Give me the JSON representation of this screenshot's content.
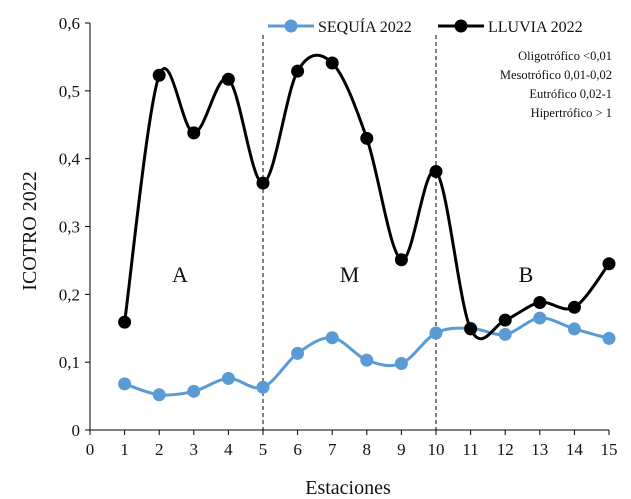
{
  "chart_data": {
    "type": "line",
    "xlabel": "Estaciones",
    "ylabel": "ICOTRO 2022",
    "xlim": [
      0,
      15
    ],
    "ylim": [
      0,
      0.6
    ],
    "x_ticks": [
      "0",
      "1",
      "2",
      "3",
      "4",
      "5",
      "6",
      "7",
      "8",
      "9",
      "10",
      "11",
      "12",
      "13",
      "14",
      "15"
    ],
    "y_ticks": [
      "0",
      "0,1",
      "0,2",
      "0,3",
      "0,4",
      "0,5",
      "0,6"
    ],
    "grid": false,
    "legend_position": "top-right",
    "series": [
      {
        "name": "SEQUÍA 2022",
        "color": "#5b9bd5",
        "x": [
          1,
          2,
          3,
          4,
          5,
          6,
          7,
          8,
          9,
          10,
          11,
          12,
          13,
          14,
          15
        ],
        "values": [
          0.068,
          0.052,
          0.057,
          0.076,
          0.063,
          0.113,
          0.136,
          0.103,
          0.098,
          0.143,
          0.15,
          0.141,
          0.165,
          0.149,
          0.135
        ]
      },
      {
        "name": "LLUVIA 2022",
        "color": "#000000",
        "x": [
          1,
          2,
          3,
          4,
          5,
          6,
          7,
          8,
          9,
          10,
          11,
          12,
          13,
          14,
          15
        ],
        "values": [
          0.159,
          0.523,
          0.438,
          0.517,
          0.364,
          0.529,
          0.541,
          0.43,
          0.251,
          0.381,
          0.149,
          0.162,
          0.188,
          0.181,
          0.245
        ]
      }
    ],
    "zone_dividers_x": [
      5,
      10
    ],
    "zones": [
      {
        "label": "A",
        "x": 2.6,
        "y": 0.23
      },
      {
        "label": "M",
        "x": 7.5,
        "y": 0.23
      },
      {
        "label": "B",
        "x": 12.6,
        "y": 0.23
      }
    ],
    "annotations": [
      "Oligotrófico <0,01",
      "Mesotrófico 0,01-0,02",
      "Eutrófico 0,02-1",
      "Hipertrófico > 1"
    ]
  }
}
